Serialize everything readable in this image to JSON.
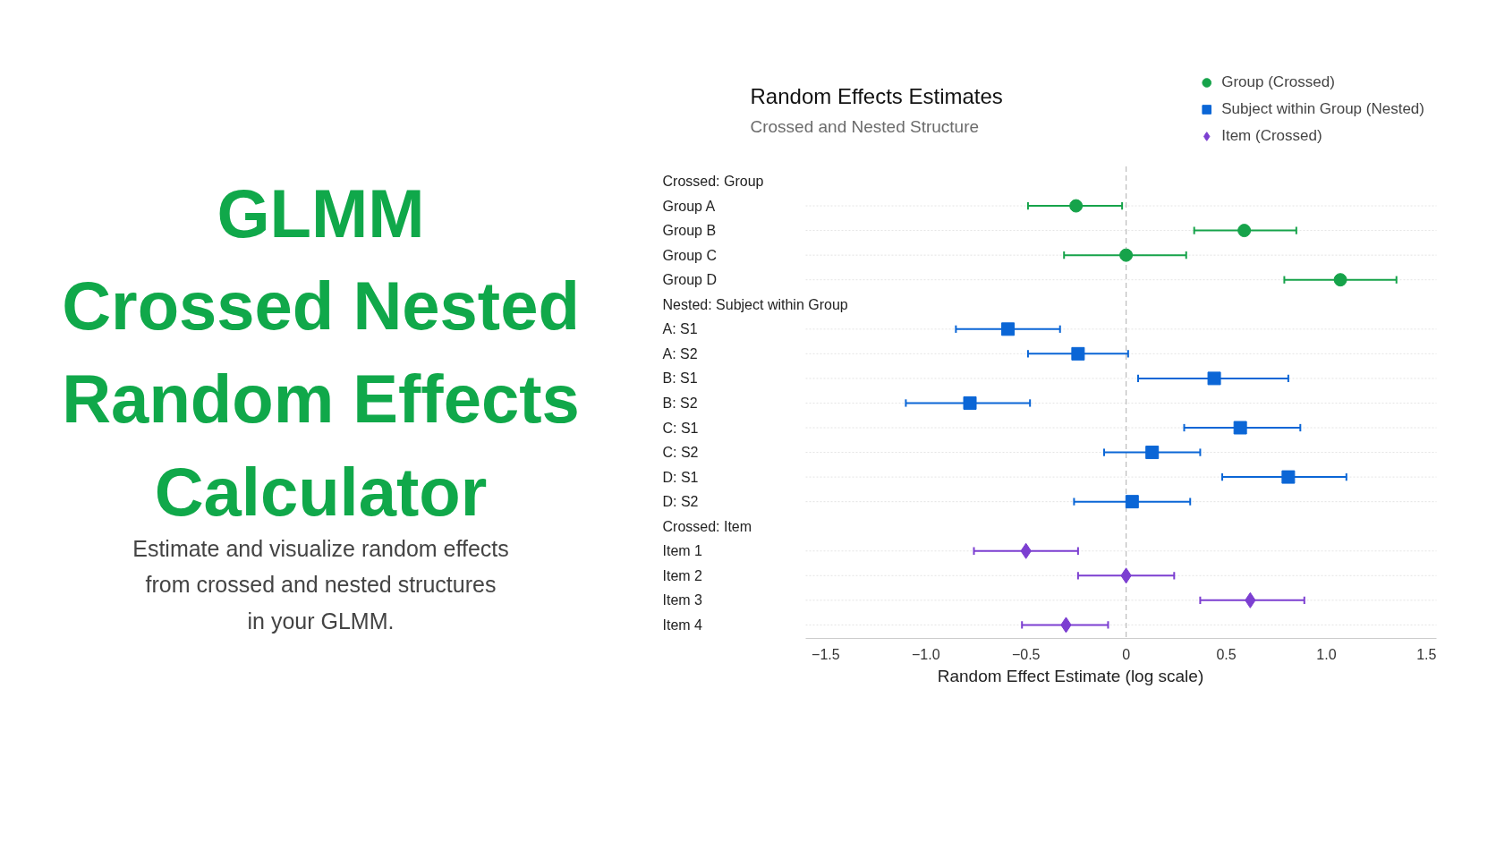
{
  "chart_data": {
    "type": "scatter",
    "title": "Random Effects Estimates",
    "subtitle": "Crossed and Nested Structure",
    "xlabel": "Random Effect Estimate (log scale)",
    "orientation": "horizontal",
    "categories": [
      "Crossed: Group",
      "Group A",
      "Group B",
      "Group C",
      "Group D",
      "Nested: Subject within Group",
      "A: S1",
      "A: S2",
      "B: S1",
      "B: S2",
      "C: S1",
      "C: S2",
      "D: S1",
      "D: S2",
      "Crossed: Item",
      "Item 1",
      "Item 2",
      "Item 3",
      "Item 4"
    ],
    "series": [
      {
        "name": "Group (Crossed)",
        "color": "#16a34a",
        "marker": "circle",
        "values": [
          null,
          -0.25,
          0.59,
          0,
          1.07,
          null,
          null,
          null,
          null,
          null,
          null,
          null,
          null,
          null,
          null,
          null,
          null,
          null,
          null
        ],
        "errors": [
          null,
          [
            -0.49,
            -0.02
          ],
          [
            0.34,
            0.85
          ],
          [
            -0.31,
            0.3
          ],
          [
            0.79,
            1.35
          ],
          null,
          null,
          null,
          null,
          null,
          null,
          null,
          null,
          null,
          null,
          null,
          null,
          null,
          null
        ]
      },
      {
        "name": "Subject within Group (Nested)",
        "color": "#0b66d6",
        "marker": "square",
        "values": [
          null,
          null,
          null,
          null,
          null,
          null,
          -0.59,
          -0.24,
          0.44,
          -0.78,
          0.57,
          0.13,
          0.81,
          0.03,
          null,
          null,
          null,
          null,
          null
        ],
        "errors": [
          null,
          null,
          null,
          null,
          null,
          null,
          [
            -0.85,
            -0.33
          ],
          [
            -0.49,
            0.01
          ],
          [
            0.06,
            0.81
          ],
          [
            -1.1,
            -0.48
          ],
          [
            0.29,
            0.87
          ],
          [
            -0.11,
            0.37
          ],
          [
            0.48,
            1.1
          ],
          [
            -0.26,
            0.32
          ],
          null,
          null,
          null,
          null,
          null
        ]
      },
      {
        "name": "Item (Crossed)",
        "color": "#7c3fd1",
        "marker": "diamond",
        "values": [
          null,
          null,
          null,
          null,
          null,
          null,
          null,
          null,
          null,
          null,
          null,
          null,
          null,
          null,
          null,
          -0.5,
          0,
          0.62,
          -0.3
        ],
        "errors": [
          null,
          null,
          null,
          null,
          null,
          null,
          null,
          null,
          null,
          null,
          null,
          null,
          null,
          null,
          null,
          [
            -0.76,
            -0.24
          ],
          [
            -0.24,
            0.24
          ],
          [
            0.37,
            0.89
          ],
          [
            -0.52,
            -0.09
          ]
        ]
      }
    ],
    "xlim": [
      -1.6,
      1.55
    ],
    "xticks": [
      {
        "value": -1.5,
        "label": "−1.5"
      },
      {
        "value": -1.0,
        "label": "−1.0"
      },
      {
        "value": -0.5,
        "label": "−0.5"
      },
      0,
      0.5,
      {
        "value": 1.0,
        "label": "1.0"
      },
      1.5
    ],
    "ref_lines": [
      {
        "axis": "x",
        "value": 0,
        "color": "#bbbbbb",
        "line_style": "dashed"
      }
    ],
    "grid": "y",
    "legend": "top right",
    "annotations": [
      "GLMM\nCrossed Nested\nRandom Effects\nCalculator",
      "Estimate and visualize random effects\nfrom crossed and nested structures\nin your GLMM."
    ]
  }
}
